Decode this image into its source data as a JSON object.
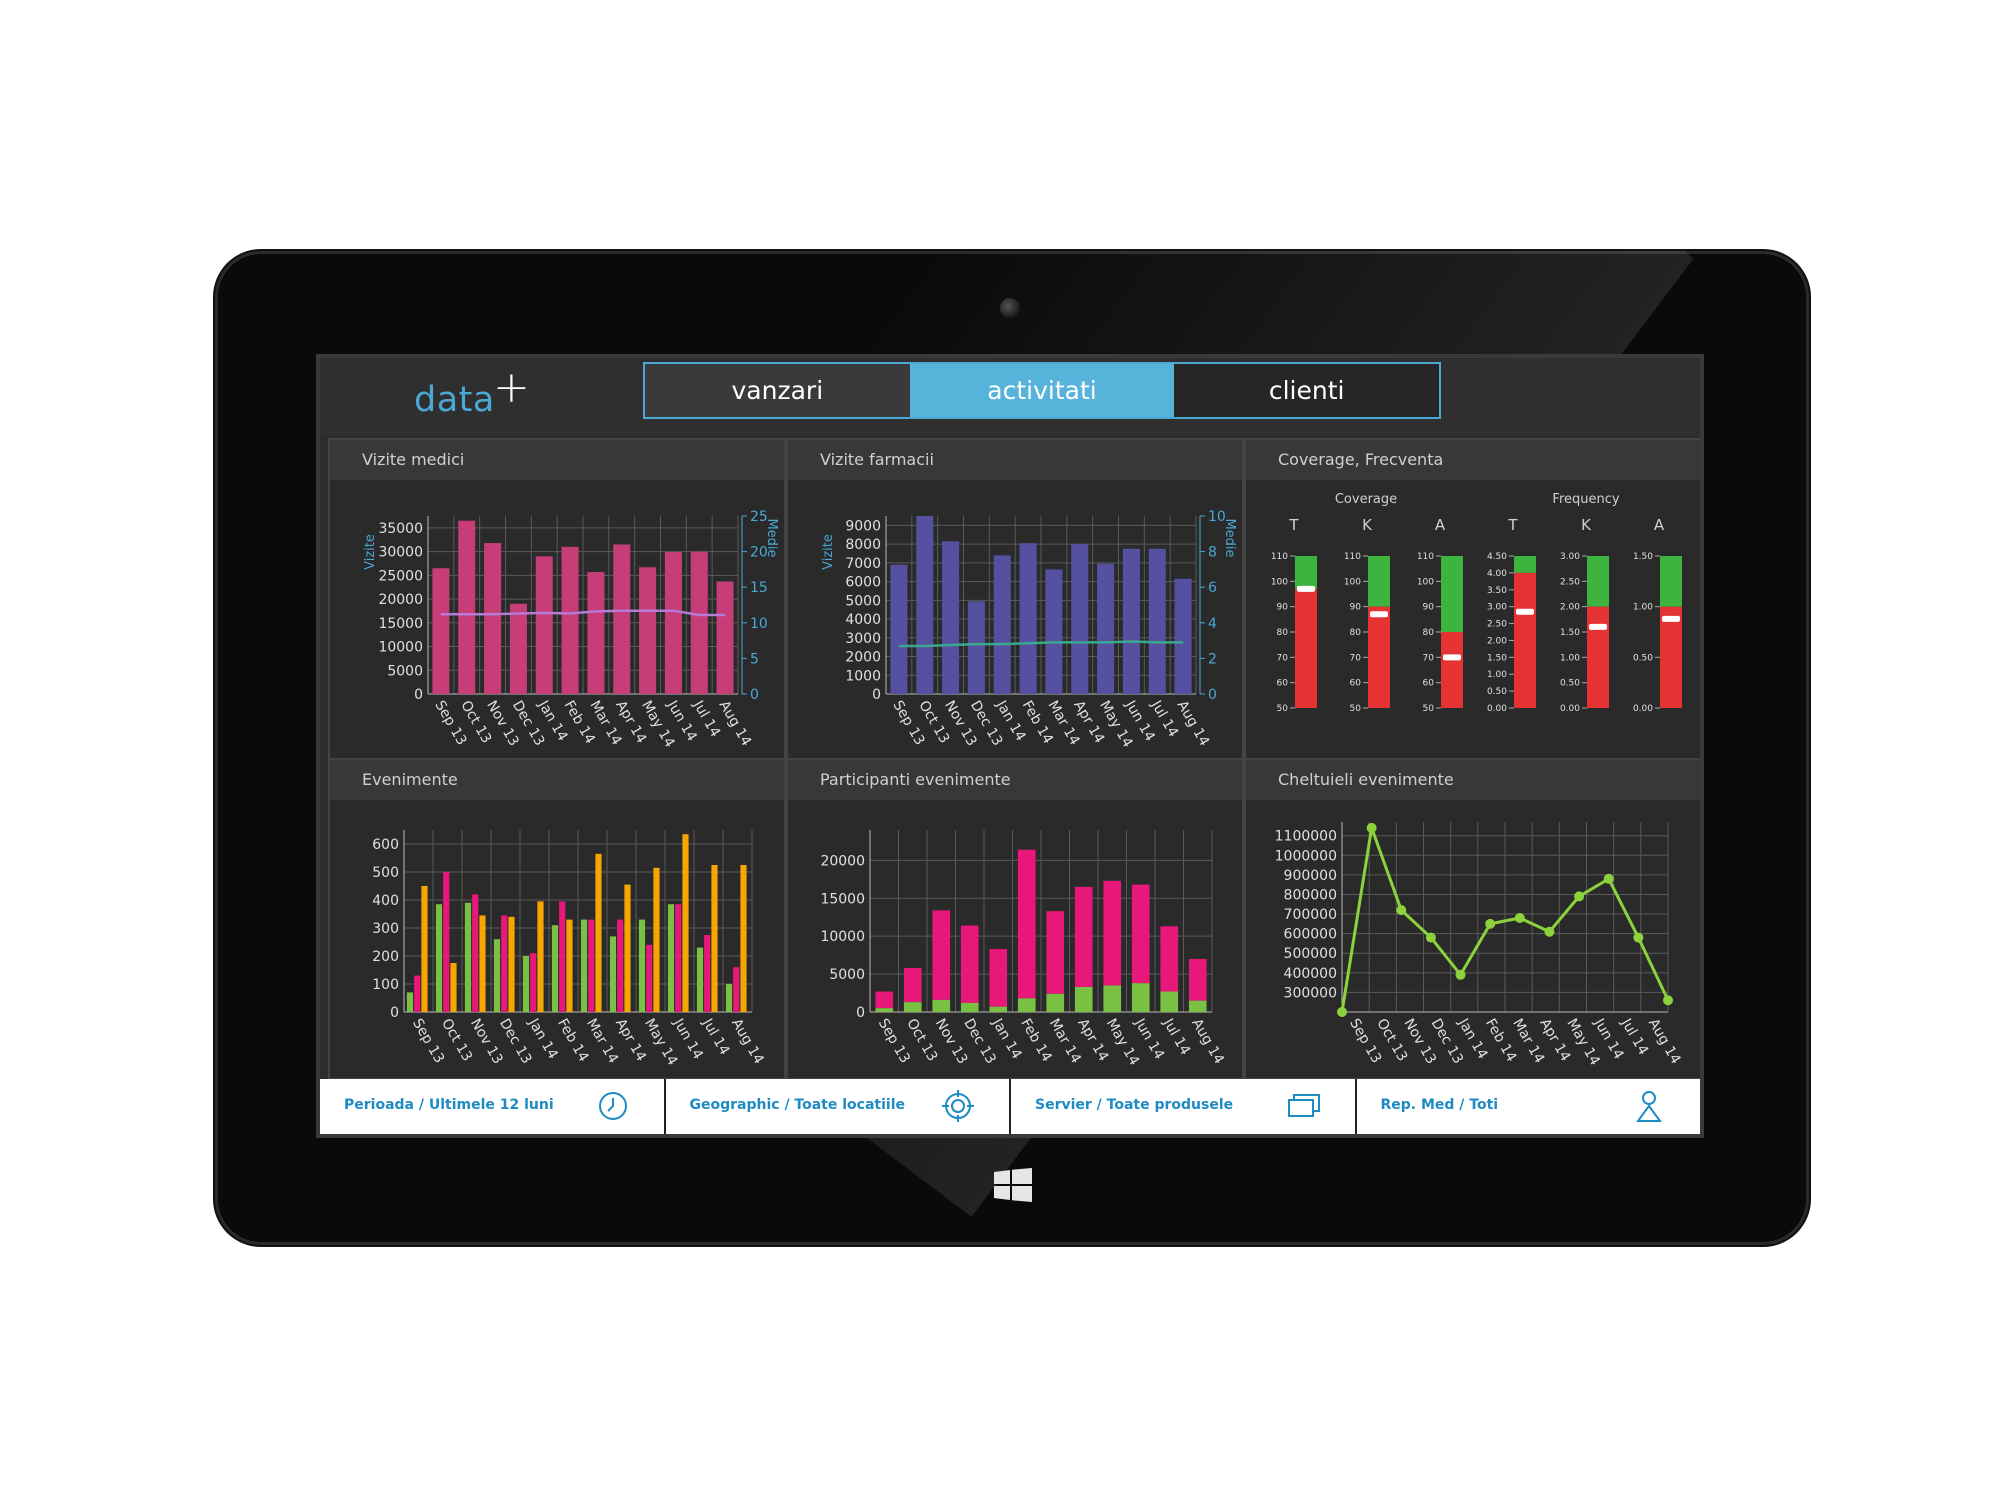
{
  "header": {
    "logo_text": "data",
    "logo_plus": "+",
    "tabs": [
      {
        "label": "vanzari"
      },
      {
        "label": "activitati"
      },
      {
        "label": "clienti"
      }
    ],
    "active_tab": "activitati"
  },
  "colors": {
    "accent": "#56b3d9",
    "magenta_bar": "#c63d78",
    "blue_bar": "#5550a0",
    "pink": "#e8177a",
    "green": "#7ac143",
    "orange": "#f7a600",
    "lime": "#8cd23c",
    "red": "#e53333",
    "green_bar": "#3db43d"
  },
  "panels": [
    {
      "title": "Vizite medici"
    },
    {
      "title": "Vizite farmacii"
    },
    {
      "title": "Coverage, Frecventa"
    },
    {
      "title": "Evenimente"
    },
    {
      "title": "Participanti evenimente"
    },
    {
      "title": "Cheltuieli evenimente"
    }
  ],
  "footer": {
    "filters": [
      {
        "label": "Perioada / Ultimele 12 luni",
        "icon": "clock-icon"
      },
      {
        "label": "Geographic / Toate locatiile",
        "icon": "target-icon"
      },
      {
        "label": "Servier / Toate produsele",
        "icon": "layers-icon"
      },
      {
        "label": "Rep. Med / Toti",
        "icon": "person-icon"
      }
    ]
  },
  "chart_data": [
    {
      "type": "bar",
      "title": "Vizite medici",
      "categories": [
        "Sep 13",
        "Oct 13",
        "Nov 13",
        "Dec 13",
        "Jan 14",
        "Feb 14",
        "Mar 14",
        "Apr 14",
        "May 14",
        "Jun 14",
        "Jul 14",
        "Aug 14"
      ],
      "ylabel": "Vizite",
      "y2label": "Medie",
      "ylim": [
        0,
        37500
      ],
      "y2lim": [
        0,
        25
      ],
      "yticks": [
        0,
        5000,
        10000,
        15000,
        20000,
        25000,
        30000,
        35000
      ],
      "y2ticks": [
        0,
        5,
        10,
        15,
        20,
        25
      ],
      "series": [
        {
          "values": [
            26500,
            36500,
            31800,
            19000,
            29000,
            31000,
            25700,
            31500,
            26700,
            29900,
            30000,
            23700
          ]
        },
        {
          "values": [
            11.2,
            11.2,
            11.2,
            11.3,
            11.4,
            11.3,
            11.6,
            11.7,
            11.7,
            11.7,
            11.1,
            11.1
          ]
        }
      ]
    },
    {
      "type": "bar",
      "title": "Vizite farmacii",
      "categories": [
        "Sep 13",
        "Oct 13",
        "Nov 13",
        "Dec 13",
        "Jan 14",
        "Feb 14",
        "Mar 14",
        "Apr 14",
        "May 14",
        "Jun 14",
        "Jul 14",
        "Aug 14"
      ],
      "ylabel": "Vizite",
      "y2label": "Medie",
      "ylim": [
        0,
        9500
      ],
      "y2lim": [
        0,
        10
      ],
      "yticks": [
        0,
        1000,
        2000,
        3000,
        4000,
        5000,
        6000,
        7000,
        8000,
        9000
      ],
      "y2ticks": [
        0,
        2,
        4,
        6,
        8,
        10
      ],
      "series": [
        {
          "values": [
            6900,
            9500,
            8150,
            4950,
            7400,
            8050,
            6650,
            8000,
            6950,
            7750,
            7750,
            6150
          ]
        },
        {
          "values": [
            2.7,
            2.7,
            2.75,
            2.8,
            2.8,
            2.85,
            2.9,
            2.9,
            2.9,
            2.95,
            2.9,
            2.9
          ]
        }
      ]
    },
    {
      "type": "bar",
      "title": "Coverage, Frecventa",
      "groups": [
        {
          "label": "Coverage",
          "bars": [
            {
              "label": "T",
              "ticks": [
                "110",
                "100",
                "90",
                "80",
                "70",
                "60",
                "50"
              ],
              "range": [
                50,
                110
              ],
              "split": 97,
              "marker": 97
            },
            {
              "label": "K",
              "ticks": [
                "110",
                "100",
                "90",
                "80",
                "70",
                "60",
                "50"
              ],
              "range": [
                50,
                110
              ],
              "split": 90,
              "marker": 87
            },
            {
              "label": "A",
              "ticks": [
                "110",
                "100",
                "90",
                "80",
                "70",
                "60",
                "50"
              ],
              "range": [
                50,
                110
              ],
              "split": 80,
              "marker": 70
            }
          ]
        },
        {
          "label": "Frequency",
          "bars": [
            {
              "label": "T",
              "ticks": [
                "4.50",
                "4.00",
                "3.50",
                "3.00",
                "2.50",
                "2.00",
                "1.50",
                "1.00",
                "0.50",
                "0.00"
              ],
              "range": [
                0,
                4.5
              ],
              "split": 4.0,
              "marker": 2.85
            },
            {
              "label": "K",
              "ticks": [
                "3.00",
                "2.50",
                "2.00",
                "1.50",
                "1.00",
                "0.50",
                "0.00"
              ],
              "range": [
                0,
                3
              ],
              "split": 2.0,
              "marker": 1.6
            },
            {
              "label": "A",
              "ticks": [
                "1.50",
                "1.00",
                "0.50",
                "0.00"
              ],
              "range": [
                0,
                1.5
              ],
              "split": 1.0,
              "marker": 0.88
            }
          ]
        }
      ]
    },
    {
      "type": "bar",
      "title": "Evenimente",
      "categories": [
        "Sep 13",
        "Oct 13",
        "Nov 13",
        "Dec 13",
        "Jan 14",
        "Feb 14",
        "Mar 14",
        "Apr 14",
        "May 14",
        "Jun 14",
        "Jul 14",
        "Aug 14"
      ],
      "ylim": [
        0,
        650
      ],
      "yticks": [
        0,
        100,
        200,
        300,
        400,
        500,
        600
      ],
      "series": [
        {
          "values": [
            70,
            385,
            390,
            260,
            200,
            310,
            330,
            270,
            330,
            385,
            230,
            100
          ]
        },
        {
          "values": [
            130,
            500,
            420,
            345,
            210,
            395,
            330,
            330,
            240,
            385,
            275,
            160
          ]
        },
        {
          "values": [
            450,
            175,
            345,
            340,
            395,
            330,
            565,
            455,
            515,
            635,
            525,
            525
          ]
        }
      ]
    },
    {
      "type": "bar",
      "title": "Participanti evenimente",
      "categories": [
        "Sep 13",
        "Oct 13",
        "Nov 13",
        "Dec 13",
        "Jan 14",
        "Feb 14",
        "Mar 14",
        "Apr 14",
        "May 14",
        "Jun 14",
        "Jul 14",
        "Aug 14"
      ],
      "ylim": [
        0,
        24000
      ],
      "yticks": [
        0,
        5000,
        10000,
        15000,
        20000
      ],
      "series": [
        {
          "values": [
            500,
            1300,
            1600,
            1200,
            700,
            1800,
            2400,
            3300,
            3500,
            3800,
            2700,
            1500
          ]
        },
        {
          "values": [
            2700,
            5800,
            13400,
            11400,
            8300,
            21400,
            13300,
            16500,
            17300,
            16800,
            11300,
            7000
          ]
        }
      ]
    },
    {
      "type": "line",
      "title": "Cheltuieli evenimente",
      "categories": [
        "Sep 13",
        "Oct 13",
        "Nov 13",
        "Dec 13",
        "Jan 14",
        "Feb 14",
        "Mar 14",
        "Apr 14",
        "May 14",
        "Jun 14",
        "Jul 14",
        "Aug 14"
      ],
      "ylim": [
        200000,
        1170000
      ],
      "yticks": [
        300000,
        400000,
        500000,
        600000,
        700000,
        800000,
        900000,
        1000000,
        1100000
      ],
      "series": [
        {
          "values": [
            200000,
            1140000,
            720000,
            580000,
            390000,
            650000,
            680000,
            610000,
            790000,
            880000,
            580000,
            260000
          ]
        }
      ]
    }
  ]
}
